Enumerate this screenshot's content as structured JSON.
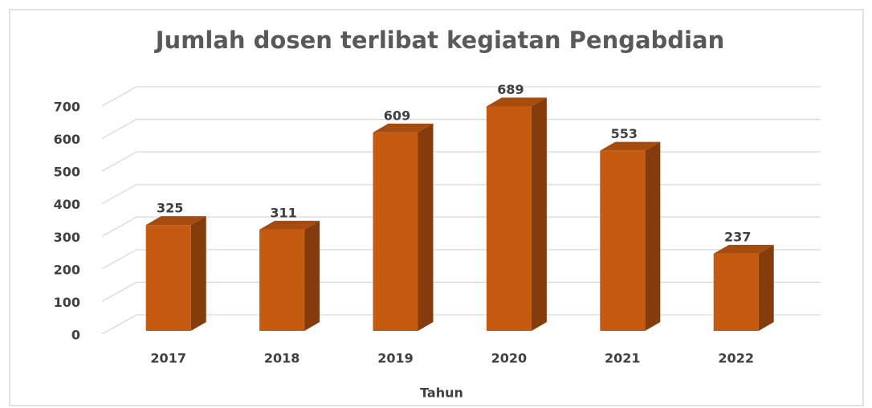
{
  "chart_data": {
    "type": "bar3d",
    "title": "Jumlah dosen terlibat kegiatan Pengabdian",
    "categories": [
      "2017",
      "2018",
      "2019",
      "2020",
      "2021",
      "2022"
    ],
    "values": [
      325,
      311,
      609,
      689,
      553,
      237
    ],
    "color": "#c55a11",
    "x_label": "Tahun",
    "ylim": [
      0,
      700
    ],
    "yticks": [
      0,
      100,
      200,
      300,
      400,
      500,
      600,
      700
    ],
    "grid": true
  }
}
